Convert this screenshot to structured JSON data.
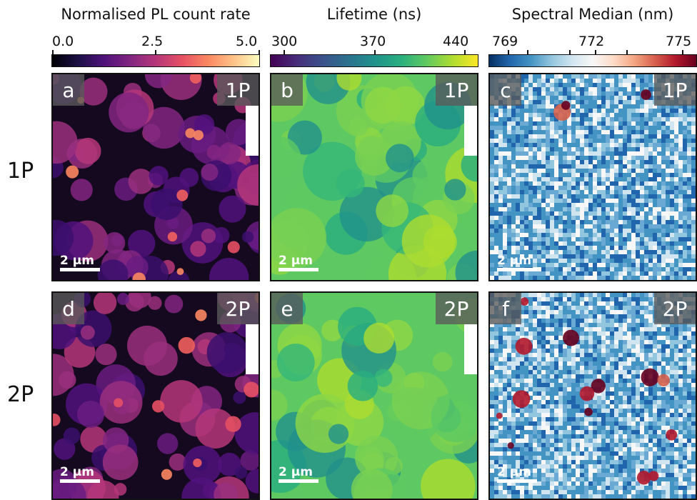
{
  "colorbars": [
    {
      "title": "Normalised PL count rate",
      "ticks": [
        "0.0",
        "2.5",
        "5.0"
      ],
      "colormap": "magma"
    },
    {
      "title": "Lifetime (ns)",
      "ticks": [
        "300",
        "370",
        "440"
      ],
      "colormap": "viridis"
    },
    {
      "title": "Spectral Median (nm)",
      "ticks": [
        "769",
        "772",
        "775"
      ],
      "colormap": "RdBu_r"
    }
  ],
  "rows": [
    {
      "label": "1P"
    },
    {
      "label": "2P"
    }
  ],
  "panels": [
    {
      "letter": "a",
      "mode": "1P",
      "scalebar": "2 μm"
    },
    {
      "letter": "b",
      "mode": "1P",
      "scalebar": "2 μm"
    },
    {
      "letter": "c",
      "mode": "1P",
      "scalebar": "2 μm"
    },
    {
      "letter": "d",
      "mode": "2P",
      "scalebar": "2 μm"
    },
    {
      "letter": "e",
      "mode": "2P",
      "scalebar": "2 μm"
    },
    {
      "letter": "f",
      "mode": "2P",
      "scalebar": "2 μm"
    }
  ]
}
